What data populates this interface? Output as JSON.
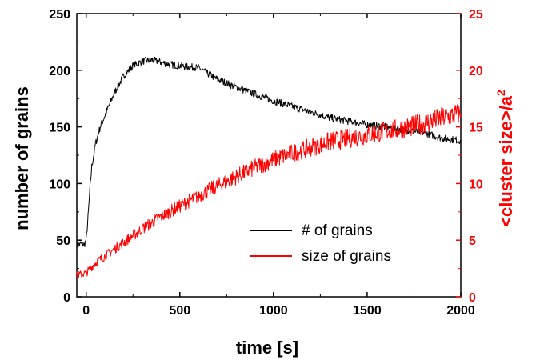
{
  "chart_data": {
    "type": "line",
    "title": "",
    "xlabel": "time [s]",
    "ylabel_left": "number of  grains",
    "ylabel_right": "<cluster size>/a",
    "ylabel_right_sup": "2",
    "xlim": [
      -50,
      2000
    ],
    "ylim_left": [
      0,
      250
    ],
    "ylim_right": [
      0,
      25
    ],
    "x_ticks": [
      0,
      500,
      1000,
      1500,
      2000
    ],
    "x_tick_labels": [
      "0",
      "500",
      "1000",
      "1500",
      "2000"
    ],
    "y_left_ticks": [
      0,
      50,
      100,
      150,
      200,
      250
    ],
    "y_left_tick_labels": [
      "0",
      "50",
      "100",
      "150",
      "200",
      "250"
    ],
    "y_right_ticks": [
      0,
      5,
      10,
      15,
      20,
      25
    ],
    "y_right_tick_labels": [
      "0",
      "5",
      "10",
      "15",
      "20",
      "25"
    ],
    "grid": false,
    "legend_position": "lower-right, inside plot",
    "colors": {
      "left_axis": "#000000",
      "right_axis": "#ff0000"
    },
    "series": [
      {
        "name": "# of grains",
        "color": "#000000",
        "axis": "left",
        "x": [
          -50,
          -30,
          -10,
          0,
          10,
          20,
          30,
          50,
          75,
          100,
          150,
          200,
          250,
          300,
          350,
          400,
          450,
          500,
          550,
          600,
          650,
          700,
          800,
          900,
          1000,
          1100,
          1200,
          1300,
          1400,
          1500,
          1600,
          1700,
          1800,
          1900,
          2000
        ],
        "y": [
          45,
          47,
          46,
          50,
          70,
          95,
          115,
          135,
          150,
          160,
          180,
          195,
          204,
          208,
          209,
          207,
          205,
          204,
          203,
          202,
          197,
          192,
          185,
          179,
          173,
          168,
          163,
          158,
          155,
          152,
          150,
          147,
          145,
          140,
          138
        ]
      },
      {
        "name": "size of grains",
        "color": "#ff0000",
        "axis": "right",
        "x": [
          -50,
          0,
          50,
          100,
          200,
          300,
          400,
          500,
          600,
          700,
          800,
          900,
          1000,
          1100,
          1200,
          1300,
          1400,
          1500,
          1600,
          1700,
          1800,
          1900,
          2000
        ],
        "y": [
          1.9,
          2.1,
          3.0,
          3.6,
          4.8,
          6.0,
          7.1,
          8.0,
          8.9,
          9.8,
          10.6,
          11.4,
          12.1,
          12.7,
          13.2,
          13.7,
          14.0,
          14.3,
          14.6,
          14.9,
          15.3,
          15.8,
          16.2
        ]
      }
    ]
  }
}
